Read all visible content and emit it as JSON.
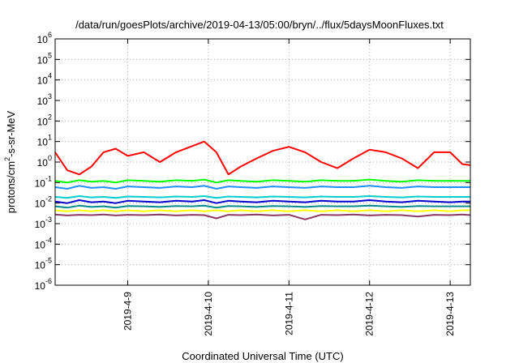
{
  "chart_data": {
    "type": "line",
    "title": "/data/run/goesPlots/archive/2019-04-13/05:00/bryn/../flux/5daysMoonFluxes.txt",
    "xlabel": "Coordinated Universal Time (UTC)",
    "ylabel_parts": {
      "base": "protons/cm",
      "sup": "2",
      "rest": "-s-sr-MeV"
    },
    "yscale": "log",
    "ylim_exp": [
      -6,
      6
    ],
    "y_ticks": [
      {
        "base": "10",
        "exp": "-6"
      },
      {
        "base": "10",
        "exp": "-5"
      },
      {
        "base": "10",
        "exp": "-4"
      },
      {
        "base": "10",
        "exp": "-3"
      },
      {
        "base": "10",
        "exp": "-2"
      },
      {
        "base": "10",
        "exp": "-1"
      },
      {
        "base": "10",
        "exp": "0"
      },
      {
        "base": "10",
        "exp": "1"
      },
      {
        "base": "10",
        "exp": "2"
      },
      {
        "base": "10",
        "exp": "3"
      },
      {
        "base": "10",
        "exp": "4"
      },
      {
        "base": "10",
        "exp": "5"
      },
      {
        "base": "10",
        "exp": "6"
      }
    ],
    "xlim_days": [
      8.1,
      13.25
    ],
    "x_ticks": [
      {
        "label": "2019-4-9",
        "day": 9
      },
      {
        "label": "2019-4-10",
        "day": 10
      },
      {
        "label": "2019-4-11",
        "day": 11
      },
      {
        "label": "2019-4-12",
        "day": 12
      },
      {
        "label": "2019-4-13",
        "day": 13
      }
    ],
    "grid": true,
    "legend": "none",
    "x_days": [
      8.1,
      8.25,
      8.4,
      8.55,
      8.7,
      8.85,
      9.0,
      9.2,
      9.4,
      9.6,
      9.8,
      9.95,
      10.1,
      10.25,
      10.4,
      10.6,
      10.8,
      11.0,
      11.2,
      11.4,
      11.6,
      11.8,
      12.0,
      12.2,
      12.4,
      12.6,
      12.8,
      13.0,
      13.15,
      13.25
    ],
    "series": [
      {
        "color": "#ff0000",
        "values": [
          3.0,
          0.4,
          0.25,
          0.6,
          3.0,
          4.5,
          2.0,
          3.0,
          1.0,
          3.0,
          6.0,
          10.0,
          3.0,
          0.25,
          0.6,
          1.5,
          3.5,
          5.5,
          3.0,
          1.0,
          0.5,
          1.5,
          4.0,
          3.0,
          1.5,
          0.5,
          3.0,
          3.0,
          0.8,
          0.7
        ]
      },
      {
        "color": "#00ff00",
        "values": [
          0.12,
          0.1,
          0.13,
          0.11,
          0.12,
          0.1,
          0.13,
          0.12,
          0.11,
          0.13,
          0.12,
          0.14,
          0.1,
          0.13,
          0.12,
          0.11,
          0.13,
          0.12,
          0.11,
          0.13,
          0.12,
          0.12,
          0.14,
          0.12,
          0.11,
          0.13,
          0.12,
          0.12,
          0.12,
          0.12
        ]
      },
      {
        "color": "#1e90ff",
        "values": [
          0.06,
          0.05,
          0.07,
          0.055,
          0.06,
          0.05,
          0.065,
          0.06,
          0.055,
          0.065,
          0.06,
          0.07,
          0.05,
          0.065,
          0.06,
          0.055,
          0.065,
          0.06,
          0.055,
          0.065,
          0.06,
          0.06,
          0.07,
          0.06,
          0.055,
          0.065,
          0.06,
          0.06,
          0.06,
          0.06
        ]
      },
      {
        "color": "#00ced1",
        "values": [
          0.02,
          0.018,
          0.022,
          0.019,
          0.02,
          0.018,
          0.021,
          0.02,
          0.019,
          0.021,
          0.02,
          0.022,
          0.018,
          0.021,
          0.02,
          0.019,
          0.021,
          0.02,
          0.019,
          0.021,
          0.02,
          0.02,
          0.022,
          0.02,
          0.019,
          0.021,
          0.02,
          0.02,
          0.02,
          0.02
        ]
      },
      {
        "color": "#0000cd",
        "values": [
          0.012,
          0.01,
          0.014,
          0.011,
          0.012,
          0.01,
          0.013,
          0.012,
          0.011,
          0.013,
          0.012,
          0.014,
          0.01,
          0.013,
          0.012,
          0.011,
          0.013,
          0.012,
          0.011,
          0.013,
          0.012,
          0.012,
          0.014,
          0.012,
          0.011,
          0.013,
          0.012,
          0.011,
          0.012,
          0.012
        ]
      },
      {
        "color": "#008b8b",
        "values": [
          0.007,
          0.006,
          0.0075,
          0.0065,
          0.007,
          0.006,
          0.0072,
          0.007,
          0.0065,
          0.0072,
          0.007,
          0.0075,
          0.006,
          0.0072,
          0.007,
          0.0065,
          0.0072,
          0.007,
          0.0065,
          0.0072,
          0.007,
          0.007,
          0.0075,
          0.007,
          0.0065,
          0.0072,
          0.007,
          0.007,
          0.007,
          0.007
        ]
      },
      {
        "color": "#ffff00",
        "values": [
          0.0045,
          0.004,
          0.0045,
          0.004,
          0.0045,
          0.004,
          0.0045,
          0.004,
          0.0045,
          0.004,
          0.0045,
          0.004,
          0.0045,
          0.004,
          0.0045,
          0.004,
          0.0045,
          0.004,
          0.0045,
          0.004,
          0.0045,
          0.004,
          0.0045,
          0.004,
          0.0045,
          0.004,
          0.0045,
          0.004,
          0.0045,
          0.0045
        ]
      },
      {
        "color": "#8b3a62",
        "values": [
          0.0028,
          0.0025,
          0.0027,
          0.0026,
          0.0028,
          0.0025,
          0.0027,
          0.0026,
          0.0028,
          0.0025,
          0.0027,
          0.0026,
          0.0018,
          0.0027,
          0.0026,
          0.0028,
          0.0025,
          0.0027,
          0.0016,
          0.0027,
          0.0026,
          0.0028,
          0.0025,
          0.0027,
          0.0026,
          0.0022,
          0.0027,
          0.0026,
          0.0028,
          0.0026
        ]
      }
    ]
  }
}
